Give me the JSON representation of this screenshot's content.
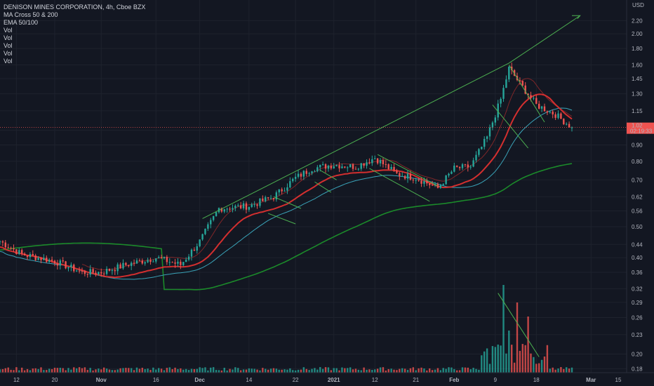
{
  "legend": {
    "title": "DENISON MINES CORPORATION, 4h, Cboe BZX",
    "lines": [
      "MA Cross 50 & 200",
      "EMA 50/100",
      "Vol",
      "Vol",
      "Vol",
      "Vol",
      "Vol"
    ]
  },
  "price_axis": {
    "currency": "USD",
    "ticks": [
      "2.20",
      "2.00",
      "1.80",
      "1.60",
      "1.45",
      "1.30",
      "1.15",
      "1.00",
      "0.90",
      "0.80",
      "0.70",
      "0.62",
      "0.56",
      "0.50",
      "0.44",
      "0.40",
      "0.36",
      "0.32",
      "0.29",
      "0.26",
      "0.23",
      "0.20",
      "0.18"
    ],
    "current_price": "1.02",
    "countdown": "02:19:33",
    "current_color": "#ef5350"
  },
  "time_axis": {
    "labels": [
      "12",
      "20",
      "Nov",
      "16",
      "Dec",
      "14",
      "22",
      "2021",
      "12",
      "21",
      "Feb",
      "9",
      "18",
      "Mar",
      "15"
    ],
    "bold": [
      "Nov",
      "Dec",
      "2021",
      "Feb",
      "Mar"
    ]
  },
  "colors": {
    "up": "#26a69a",
    "down": "#ef5350",
    "ma_fast": "#d32f2f",
    "ma_slow": "#1b8a2a",
    "ema_50": "#3aa3b8",
    "ema_100": "#9b2a2a",
    "annotation": "#4caf50",
    "background": "#131722",
    "grid": "#1e222d"
  },
  "chart_data": {
    "type": "candlestick",
    "title": "DENISON MINES CORPORATION, 4h, Cboe BZX",
    "y_scale": "log",
    "ylim": [
      0.175,
      2.45
    ],
    "grid": true,
    "indicators": [
      "MA Cross 50 & 200",
      "EMA 50/100",
      "Vol"
    ],
    "approx_closes": [
      {
        "date": "Oct 12",
        "close": 0.42
      },
      {
        "date": "Oct 20",
        "close": 0.39
      },
      {
        "date": "Nov",
        "close": 0.37
      },
      {
        "date": "Nov 16",
        "close": 0.39
      },
      {
        "date": "Dec",
        "close": 0.44
      },
      {
        "date": "Dec 14",
        "close": 0.58
      },
      {
        "date": "Dec 22",
        "close": 0.7
      },
      {
        "date": "2021",
        "close": 0.78
      },
      {
        "date": "Jan 12",
        "close": 0.77
      },
      {
        "date": "Jan 21",
        "close": 0.7
      },
      {
        "date": "Feb",
        "close": 0.74
      },
      {
        "date": "Feb 9",
        "close": 1.1
      },
      {
        "date": "Feb 13",
        "close": 1.55
      },
      {
        "date": "Feb 18",
        "close": 1.3
      },
      {
        "date": "Feb 25",
        "close": 1.02
      }
    ],
    "last_price": 1.02
  }
}
